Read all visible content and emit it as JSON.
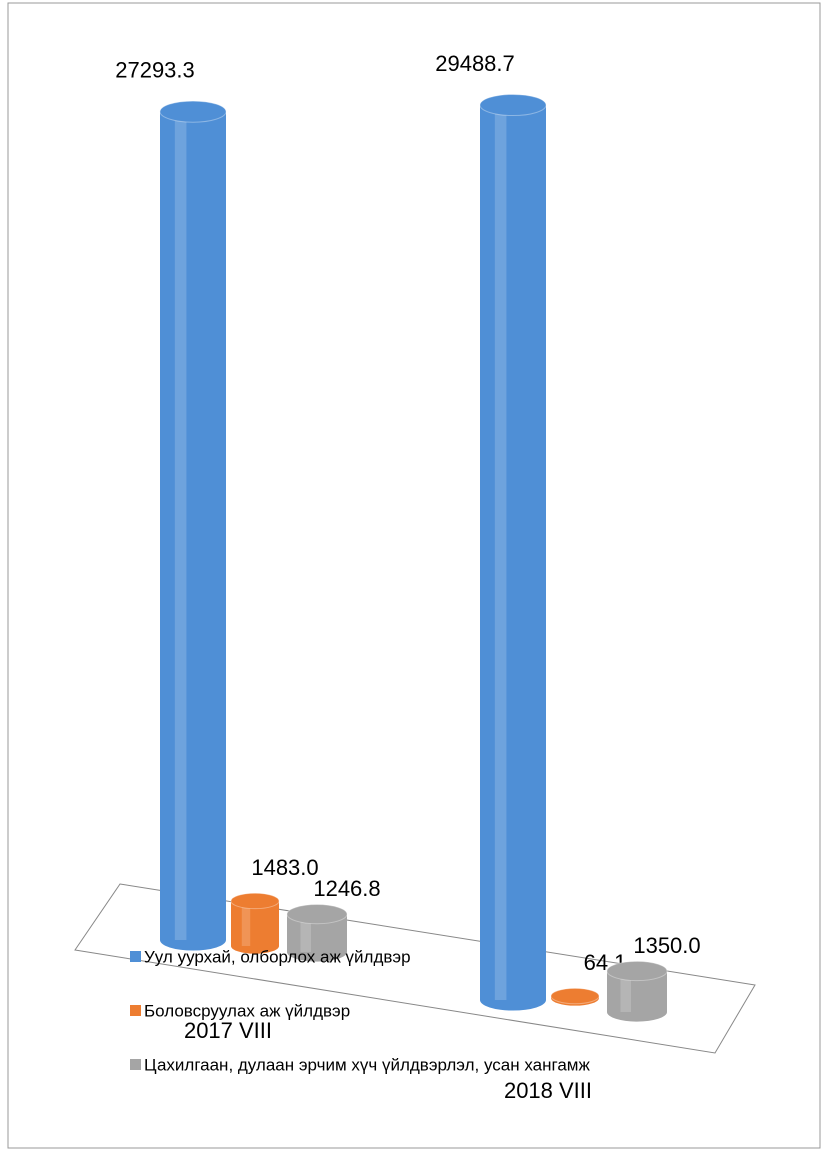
{
  "chart_data": {
    "type": "cylinder-bar",
    "categories": [
      "2017 VIII",
      "2018 VIII"
    ],
    "series": [
      {
        "name": "Уул уурхай, олборлох  аж үйлдвэр",
        "color": "#4f8fd6",
        "values": [
          27293.3,
          29488.7
        ],
        "value_labels": [
          "27293.3",
          "29488.7"
        ]
      },
      {
        "name": "Боловсруулах аж үйлдвэр",
        "color": "#ed7d31",
        "values": [
          1483.0,
          64.1
        ],
        "value_labels": [
          "1483.0",
          "64.1"
        ]
      },
      {
        "name": "Цахилгаан,  дулаан эрчим хүч үйлдвэрлэл,  усан хангамж",
        "color": "#a5a5a5",
        "values": [
          1246.8,
          1350.0
        ],
        "value_labels": [
          "1246.8",
          "1350.0"
        ]
      }
    ]
  }
}
